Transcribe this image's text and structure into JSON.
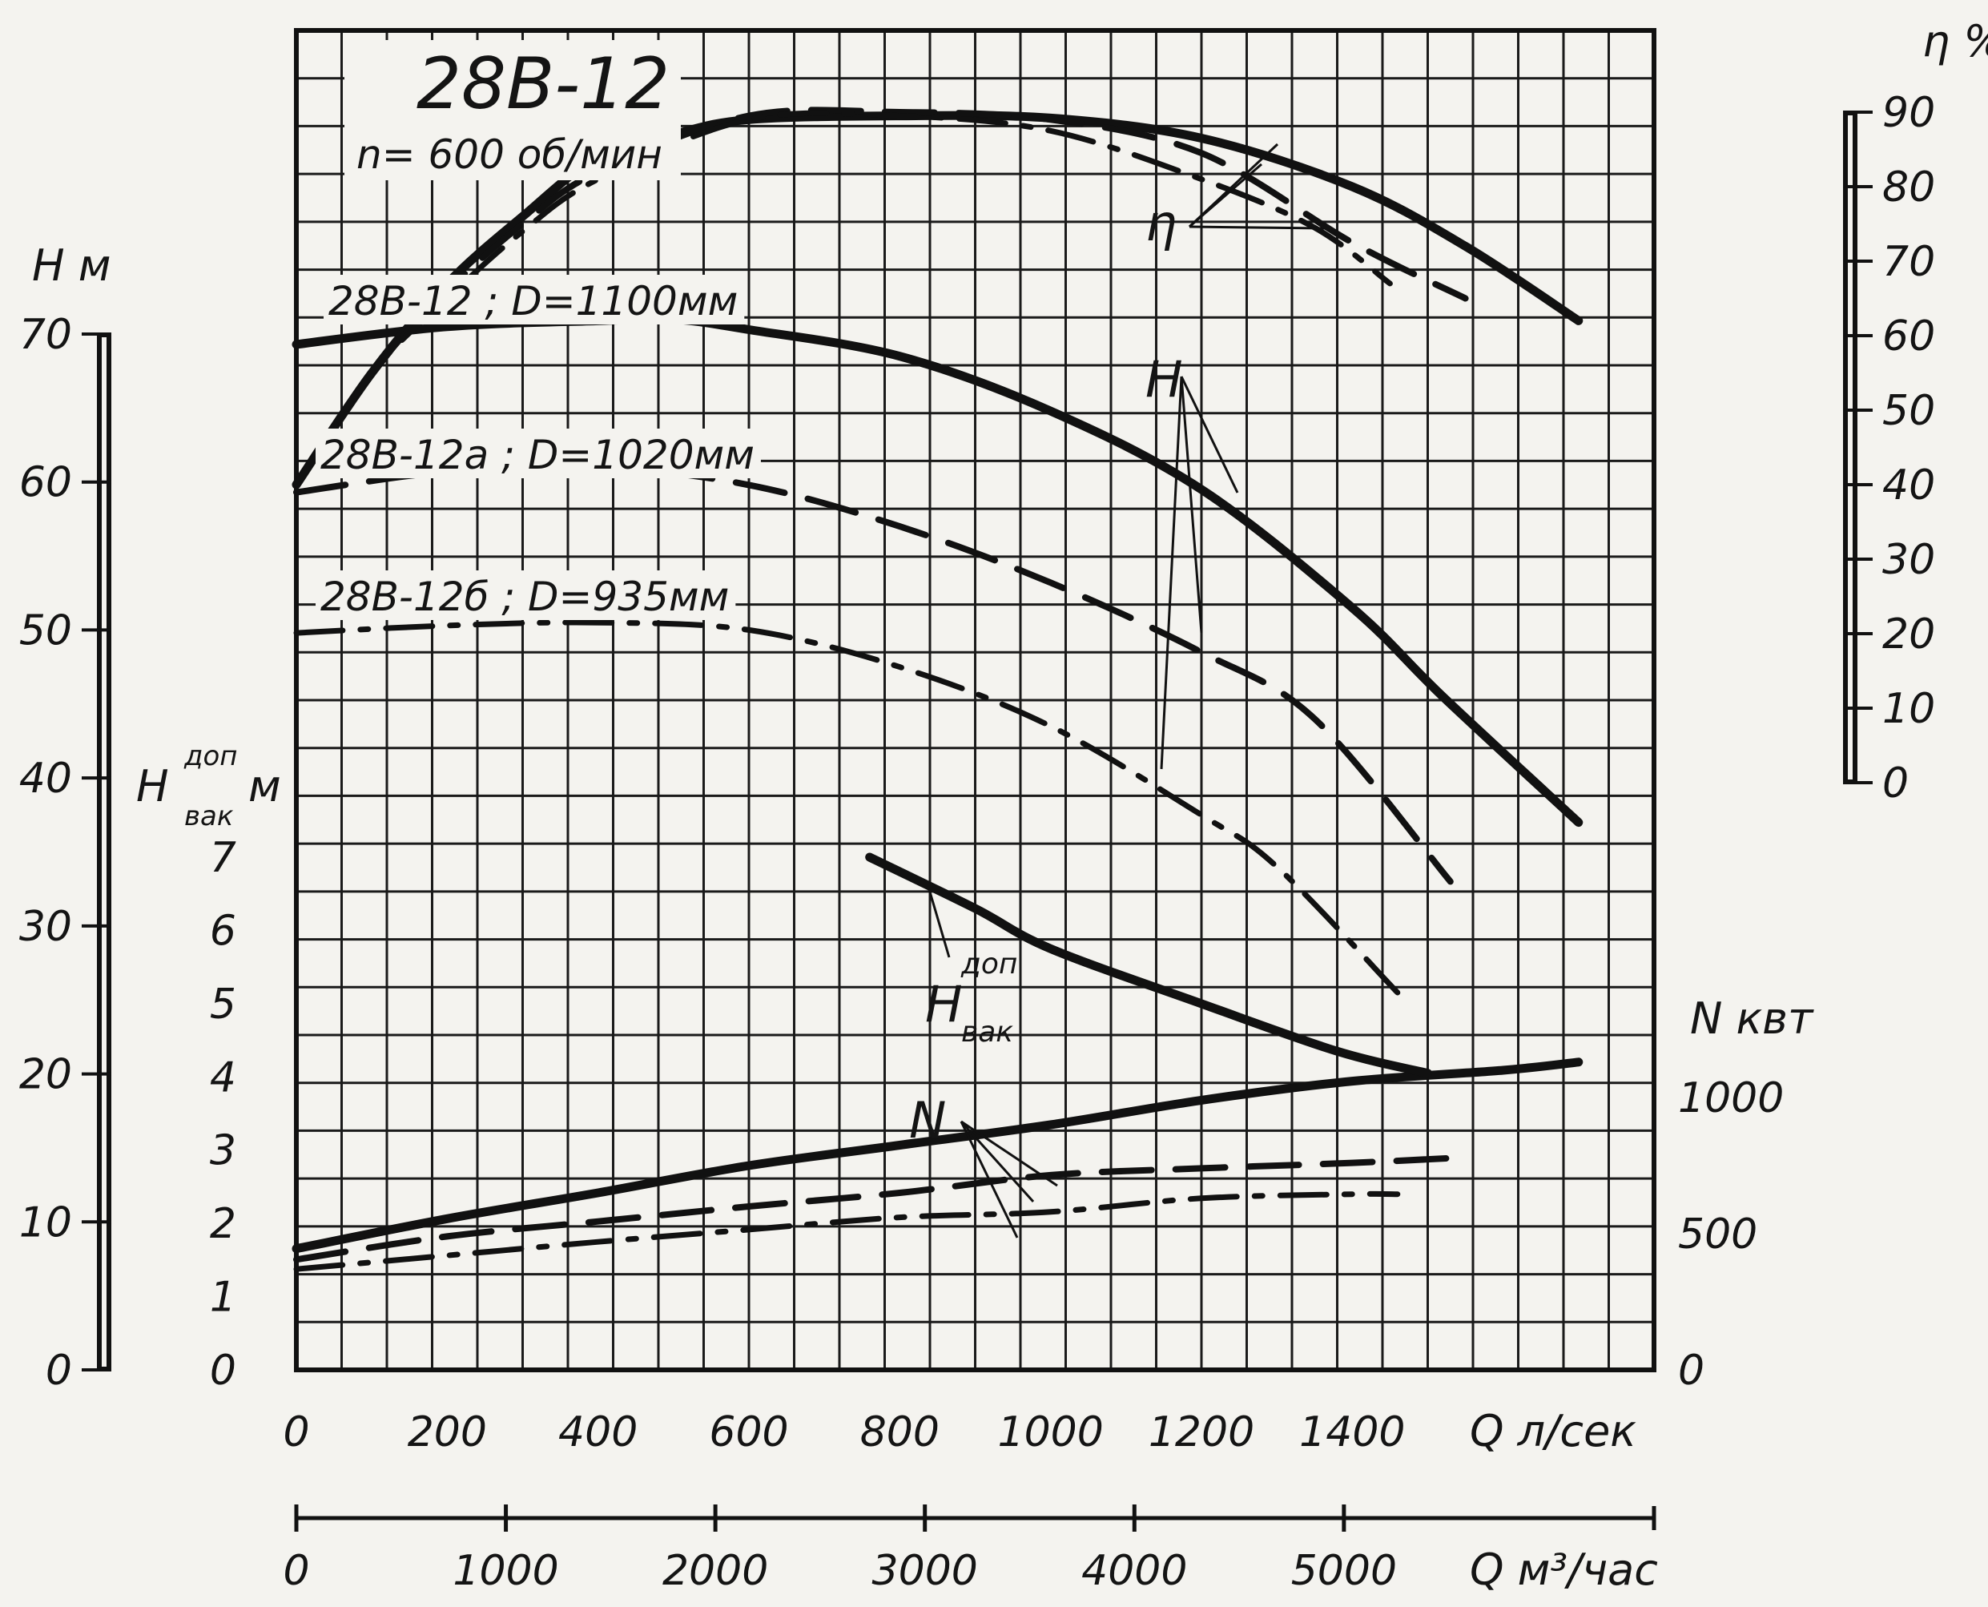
{
  "chart_data": {
    "type": "line",
    "title": "28В-12",
    "subtitle": "n= 600 об/мин",
    "x_axis": {
      "label": "Q л/сек",
      "ticks": [
        "0",
        "200",
        "400",
        "600",
        "800",
        "1000",
        "1200",
        "1400"
      ],
      "range": [
        0,
        1800
      ]
    },
    "x2_axis": {
      "label": "Q м³/час",
      "ticks": [
        "0",
        "1000",
        "2000",
        "3000",
        "4000",
        "5000"
      ],
      "range": [
        0,
        6480
      ]
    },
    "head_axis": {
      "label": "H м",
      "ticks": [
        "0",
        "10",
        "20",
        "30",
        "40",
        "50",
        "60",
        "70"
      ],
      "range": [
        0,
        70
      ]
    },
    "vacuum_axis": {
      "label": "H",
      "label_sup": "доп",
      "label_sub": "вак",
      "label_unit": "м",
      "ticks": [
        "0",
        "1",
        "2",
        "3",
        "4",
        "5",
        "6",
        "7"
      ],
      "range": [
        0,
        7
      ]
    },
    "efficiency_axis": {
      "label": "η %",
      "ticks": [
        "0",
        "10",
        "20",
        "30",
        "40",
        "50",
        "60",
        "70",
        "80",
        "90"
      ],
      "range": [
        0,
        90
      ]
    },
    "power_axis": {
      "label": "N квт",
      "ticks": [
        "0",
        "500",
        "1000"
      ],
      "range": [
        0,
        1700
      ]
    },
    "curve_labels": {
      "eta": "η",
      "head": "H",
      "power": "N",
      "vac": "H",
      "vac_sup": "доп",
      "vac_sub": "вак"
    },
    "series": [
      {
        "name": "28В-12 ; D=1100мм",
        "style": "solid",
        "H": [
          [
            0,
            69.3
          ],
          [
            200,
            70.5
          ],
          [
            400,
            70.9
          ],
          [
            500,
            71
          ],
          [
            600,
            70.3
          ],
          [
            800,
            68.5
          ],
          [
            1000,
            64.8
          ],
          [
            1200,
            59.5
          ],
          [
            1400,
            51.5
          ],
          [
            1520,
            45.5
          ],
          [
            1700,
            37
          ]
        ],
        "eta": [
          [
            0,
            40
          ],
          [
            100,
            55
          ],
          [
            200,
            67
          ],
          [
            300,
            76
          ],
          [
            400,
            84
          ],
          [
            500,
            87
          ],
          [
            600,
            89
          ],
          [
            800,
            89.5
          ],
          [
            1000,
            89.2
          ],
          [
            1200,
            86.5
          ],
          [
            1400,
            80
          ],
          [
            1550,
            72
          ],
          [
            1700,
            62
          ]
        ],
        "N": [
          [
            0,
            445
          ],
          [
            200,
            555
          ],
          [
            400,
            650
          ],
          [
            600,
            750
          ],
          [
            800,
            825
          ],
          [
            1000,
            900
          ],
          [
            1200,
            990
          ],
          [
            1400,
            1060
          ],
          [
            1600,
            1100
          ],
          [
            1700,
            1130
          ]
        ]
      },
      {
        "name": "28В-12а ; D=1020мм",
        "style": "dashed",
        "H": [
          [
            0,
            59.3
          ],
          [
            200,
            60.7
          ],
          [
            400,
            61
          ],
          [
            600,
            59.8
          ],
          [
            800,
            57
          ],
          [
            1000,
            53.2
          ],
          [
            1200,
            48.5
          ],
          [
            1350,
            44
          ],
          [
            1530,
            33
          ]
        ],
        "eta": [
          [
            0,
            40
          ],
          [
            100,
            55
          ],
          [
            200,
            66
          ],
          [
            300,
            75
          ],
          [
            400,
            82
          ],
          [
            600,
            89.5
          ],
          [
            800,
            90
          ],
          [
            1000,
            89
          ],
          [
            1200,
            84.5
          ],
          [
            1400,
            72.5
          ],
          [
            1550,
            65
          ]
        ],
        "N": [
          [
            0,
            405
          ],
          [
            200,
            490
          ],
          [
            400,
            545
          ],
          [
            600,
            600
          ],
          [
            800,
            650
          ],
          [
            1000,
            715
          ],
          [
            1200,
            740
          ],
          [
            1400,
            760
          ],
          [
            1550,
            780
          ]
        ]
      },
      {
        "name": "28В-12б ; D=935мм",
        "style": "dash-dot",
        "H": [
          [
            0,
            49.8
          ],
          [
            200,
            50.3
          ],
          [
            400,
            50.5
          ],
          [
            600,
            50
          ],
          [
            800,
            47.5
          ],
          [
            1000,
            43.5
          ],
          [
            1200,
            37.5
          ],
          [
            1300,
            34
          ],
          [
            1460,
            25.5
          ]
        ],
        "eta": [
          [
            0,
            40
          ],
          [
            100,
            55
          ],
          [
            200,
            65
          ],
          [
            300,
            74
          ],
          [
            400,
            81
          ],
          [
            600,
            89
          ],
          [
            800,
            89.5
          ],
          [
            1000,
            87.5
          ],
          [
            1200,
            81
          ],
          [
            1350,
            74.5
          ],
          [
            1450,
            67
          ]
        ],
        "N": [
          [
            0,
            370
          ],
          [
            200,
            420
          ],
          [
            400,
            470
          ],
          [
            600,
            515
          ],
          [
            800,
            560
          ],
          [
            1000,
            580
          ],
          [
            1200,
            630
          ],
          [
            1400,
            645
          ],
          [
            1460,
            645
          ]
        ]
      },
      {
        "name": "H доп вак",
        "style": "solid",
        "Hvac": [
          [
            760,
            7
          ],
          [
            900,
            6.3
          ],
          [
            1000,
            5.75
          ],
          [
            1200,
            5.0
          ],
          [
            1380,
            4.35
          ],
          [
            1500,
            4.05
          ]
        ]
      }
    ],
    "grid": true
  }
}
